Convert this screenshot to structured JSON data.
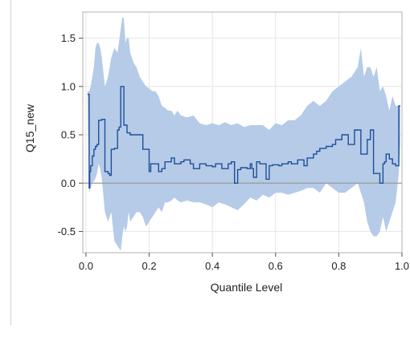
{
  "chart_data": {
    "type": "area",
    "title": "",
    "xlabel": "Quantile Level",
    "ylabel": "Q15_new",
    "xlim": [
      -0.01,
      1.0
    ],
    "ylim": [
      -0.72,
      1.77
    ],
    "x_ticks": [
      "0.0",
      "0.2",
      "0.4",
      "0.6",
      "0.8",
      "1.0"
    ],
    "y_ticks": [
      "1.5",
      "1.0",
      "0.5",
      "0.0",
      "-0.5"
    ],
    "x_tick_values": [
      0.0,
      0.2,
      0.4,
      0.6,
      0.8,
      1.0
    ],
    "y_tick_values": [
      1.5,
      1.0,
      0.5,
      0.0,
      -0.5
    ],
    "grid": true,
    "reference_line": 0.0,
    "colors": {
      "line": "#1f4e9c",
      "band": "#b5cbe7",
      "grid": "#e6e6e6",
      "ref": "#9a9a9a",
      "frame": "#b0b0b0"
    },
    "series": [
      {
        "type": "line",
        "x": [
          0.005,
          0.01,
          0.012,
          0.015,
          0.02,
          0.025,
          0.03,
          0.035,
          0.04,
          0.045,
          0.05,
          0.06,
          0.065,
          0.07,
          0.075,
          0.08,
          0.09,
          0.095,
          0.1,
          0.105,
          0.11,
          0.115,
          0.12,
          0.125,
          0.13,
          0.135,
          0.14,
          0.15,
          0.16,
          0.17,
          0.18,
          0.19,
          0.2,
          0.205,
          0.21,
          0.22,
          0.23,
          0.24,
          0.25,
          0.26,
          0.27,
          0.28,
          0.29,
          0.3,
          0.31,
          0.32,
          0.33,
          0.34,
          0.35,
          0.36,
          0.37,
          0.38,
          0.39,
          0.4,
          0.41,
          0.42,
          0.43,
          0.44,
          0.45,
          0.46,
          0.47,
          0.48,
          0.49,
          0.5,
          0.51,
          0.52,
          0.525,
          0.53,
          0.54,
          0.55,
          0.56,
          0.57,
          0.58,
          0.59,
          0.6,
          0.61,
          0.62,
          0.63,
          0.64,
          0.65,
          0.66,
          0.67,
          0.68,
          0.69,
          0.7,
          0.71,
          0.72,
          0.73,
          0.74,
          0.75,
          0.76,
          0.77,
          0.78,
          0.79,
          0.8,
          0.81,
          0.82,
          0.83,
          0.84,
          0.85,
          0.86,
          0.87,
          0.88,
          0.89,
          0.9,
          0.905,
          0.91,
          0.92,
          0.93,
          0.94,
          0.945,
          0.95,
          0.96,
          0.97,
          0.98,
          0.985,
          0.99,
          0.995
        ],
        "y": [
          0.92,
          -0.05,
          0.12,
          0.18,
          0.28,
          0.35,
          0.38,
          0.4,
          0.65,
          0.65,
          0.66,
          0.12,
          0.12,
          0.1,
          0.08,
          0.35,
          0.36,
          0.36,
          0.55,
          0.58,
          1.0,
          1.0,
          0.6,
          0.6,
          0.52,
          0.52,
          0.5,
          0.5,
          0.5,
          0.5,
          0.35,
          0.35,
          0.12,
          0.2,
          0.2,
          0.2,
          0.12,
          0.15,
          0.22,
          0.22,
          0.26,
          0.2,
          0.2,
          0.22,
          0.24,
          0.24,
          0.2,
          0.15,
          0.15,
          0.2,
          0.2,
          0.18,
          0.18,
          0.17,
          0.2,
          0.2,
          0.15,
          0.15,
          0.2,
          0.22,
          0.0,
          0.14,
          0.16,
          0.16,
          0.15,
          0.2,
          0.15,
          0.06,
          0.22,
          0.2,
          0.2,
          0.04,
          0.18,
          0.19,
          0.19,
          0.18,
          0.2,
          0.2,
          0.22,
          0.2,
          0.2,
          0.24,
          0.24,
          0.18,
          0.26,
          0.26,
          0.3,
          0.33,
          0.36,
          0.36,
          0.38,
          0.38,
          0.4,
          0.45,
          0.45,
          0.5,
          0.5,
          0.4,
          0.4,
          0.55,
          0.55,
          0.3,
          0.3,
          0.45,
          0.55,
          0.55,
          0.1,
          0.1,
          0.0,
          0.2,
          0.22,
          0.3,
          0.25,
          0.2,
          0.18,
          0.18,
          0.8,
          0.8
        ]
      },
      {
        "type": "band",
        "x": [
          0.005,
          0.01,
          0.015,
          0.02,
          0.025,
          0.03,
          0.035,
          0.04,
          0.045,
          0.05,
          0.06,
          0.07,
          0.08,
          0.09,
          0.1,
          0.11,
          0.115,
          0.12,
          0.125,
          0.13,
          0.135,
          0.14,
          0.15,
          0.16,
          0.17,
          0.18,
          0.19,
          0.2,
          0.21,
          0.22,
          0.23,
          0.24,
          0.25,
          0.26,
          0.27,
          0.28,
          0.29,
          0.3,
          0.32,
          0.34,
          0.36,
          0.38,
          0.4,
          0.42,
          0.44,
          0.46,
          0.48,
          0.5,
          0.52,
          0.54,
          0.56,
          0.58,
          0.6,
          0.62,
          0.64,
          0.66,
          0.68,
          0.7,
          0.72,
          0.74,
          0.76,
          0.78,
          0.8,
          0.82,
          0.84,
          0.86,
          0.87,
          0.88,
          0.89,
          0.9,
          0.91,
          0.92,
          0.93,
          0.94,
          0.95,
          0.96,
          0.97,
          0.98,
          0.99,
          0.995
        ],
        "upper": [
          0.95,
          0.95,
          1.0,
          1.1,
          1.2,
          1.4,
          1.45,
          1.45,
          1.4,
          1.3,
          1.0,
          1.1,
          1.3,
          1.4,
          1.35,
          1.6,
          1.72,
          1.7,
          1.45,
          1.5,
          1.5,
          1.35,
          1.25,
          1.2,
          1.1,
          1.05,
          1.0,
          0.98,
          0.95,
          0.95,
          0.9,
          0.8,
          0.78,
          0.75,
          0.75,
          0.7,
          0.75,
          0.7,
          0.68,
          0.7,
          0.62,
          0.6,
          0.62,
          0.6,
          0.63,
          0.6,
          0.62,
          0.58,
          0.6,
          0.6,
          0.6,
          0.55,
          0.62,
          0.6,
          0.65,
          0.65,
          0.7,
          0.8,
          0.85,
          0.8,
          0.85,
          0.95,
          1.0,
          1.05,
          1.1,
          1.2,
          1.4,
          1.1,
          1.2,
          1.2,
          1.1,
          1.2,
          0.95,
          1.0,
          0.9,
          0.75,
          0.9,
          0.8,
          0.8,
          0.8
        ],
        "lower": [
          0.8,
          -0.1,
          -0.05,
          0.0,
          0.02,
          0.05,
          0.1,
          0.2,
          0.15,
          0.05,
          -0.3,
          -0.4,
          -0.3,
          -0.6,
          -0.65,
          -0.7,
          -0.55,
          -0.45,
          -0.5,
          -0.45,
          -0.3,
          -0.4,
          -0.35,
          -0.3,
          -0.3,
          -0.35,
          -0.45,
          -0.4,
          -0.35,
          -0.3,
          -0.25,
          -0.3,
          -0.2,
          -0.2,
          -0.18,
          -0.15,
          -0.18,
          -0.2,
          -0.18,
          -0.2,
          -0.2,
          -0.22,
          -0.25,
          -0.2,
          -0.22,
          -0.25,
          -0.28,
          -0.22,
          -0.15,
          -0.18,
          -0.12,
          -0.15,
          -0.1,
          -0.1,
          -0.12,
          -0.1,
          -0.08,
          -0.05,
          -0.05,
          -0.1,
          0.0,
          -0.05,
          -0.1,
          -0.1,
          -0.05,
          0.0,
          -0.1,
          -0.2,
          -0.4,
          -0.5,
          -0.55,
          -0.55,
          -0.5,
          -0.35,
          -0.5,
          -0.4,
          -0.3,
          -0.2,
          0.1,
          0.4
        ]
      }
    ]
  }
}
